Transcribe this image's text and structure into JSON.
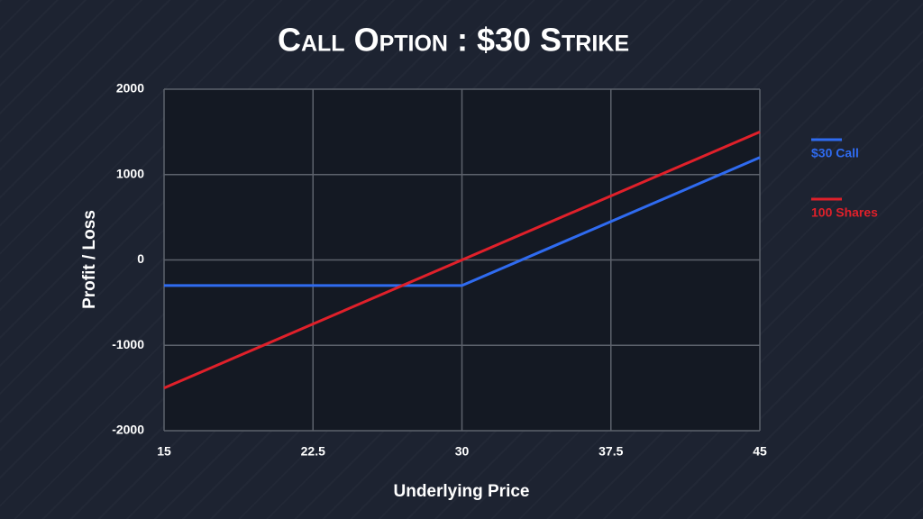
{
  "chart_data": {
    "type": "line",
    "title": "Call Option : $30 Strike",
    "x_label": "Underlying Price",
    "y_label": "Profit / Loss",
    "x": [
      15,
      30,
      45
    ],
    "series": [
      {
        "name": "$30 Call",
        "color": "#2f6bf0",
        "values": [
          -300,
          -300,
          1200
        ]
      },
      {
        "name": "100 Shares",
        "color": "#e0202a",
        "values": [
          -1500,
          0,
          1500
        ]
      }
    ],
    "xlim": [
      15,
      45
    ],
    "xticks": [
      15,
      22.5,
      30,
      37.5,
      45
    ],
    "ylim": [
      -2000,
      2000
    ],
    "yticks": [
      -2000,
      -1000,
      0,
      1000,
      2000
    ],
    "grid": true,
    "legend": "right"
  }
}
